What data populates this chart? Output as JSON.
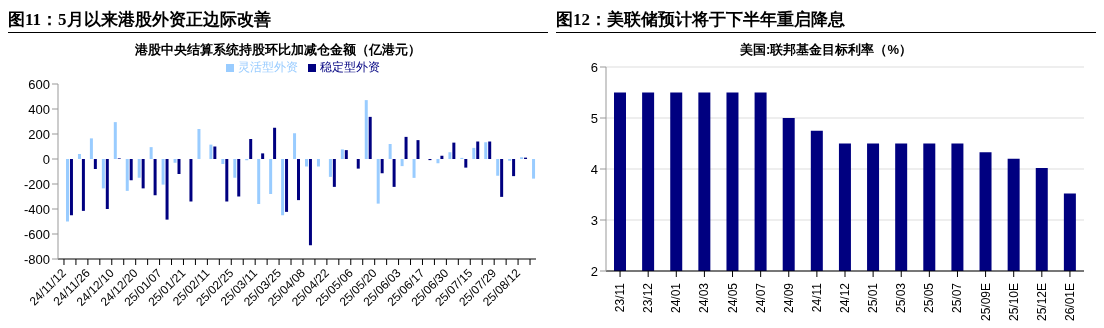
{
  "chart_data": [
    {
      "type": "bar",
      "title": "图11：5月以来港股外资正边际改善",
      "subtitle": "港股中央结算系统持股环比加减仓金额（亿港元）",
      "categories": [
        "24/11/12",
        null,
        "24/11/26",
        null,
        "24/12/10",
        null,
        "24/12/20",
        null,
        "25/01/07",
        null,
        "25/01/21",
        null,
        "25/02/11",
        null,
        "25/02/25",
        null,
        "25/03/11",
        null,
        "25/03/25",
        null,
        "25/04/08",
        null,
        "25/04/22",
        null,
        "25/05/06",
        null,
        "25/05/20",
        null,
        "25/06/03",
        null,
        "25/06/17",
        null,
        "25/06/30",
        null,
        "25/07/15",
        null,
        "25/07/29",
        null,
        "25/08/12",
        null
      ],
      "series": [
        {
          "name": "稳定型外资",
          "color": "#000080",
          "values": [
            0,
            -450,
            -415,
            -80,
            -400,
            5,
            -170,
            -235,
            -290,
            -485,
            -120,
            -340,
            0,
            100,
            -340,
            -300,
            160,
            45,
            250,
            -423,
            -329,
            -690,
            0,
            -223,
            71,
            -77,
            337,
            -114,
            -223,
            177,
            151,
            -9,
            26,
            131,
            -69,
            140,
            140,
            -303,
            -137,
            11
          ]
        },
        {
          "name": "灵活型外资",
          "color": "#99ccff",
          "values": [
            -500,
            40,
            165,
            -235,
            295,
            -255,
            -150,
            95,
            -205,
            -30,
            0,
            240,
            115,
            -40,
            -150,
            -10,
            -360,
            -280,
            -450,
            206,
            -60,
            -60,
            -143,
            77,
            0,
            471,
            -357,
            120,
            -57,
            -151,
            0,
            -34,
            54,
            9,
            89,
            134,
            -134,
            -14,
            14,
            -157
          ]
        }
      ],
      "ylim": [
        -800,
        600
      ],
      "yticks": [
        -800,
        -600,
        -400,
        -200,
        0,
        200,
        400,
        600
      ],
      "grid": false,
      "legend": "top"
    },
    {
      "type": "bar",
      "title": "图12：美联储预计将于下半年重启降息",
      "subtitle": "美国:联邦基金目标利率（%）",
      "categories": [
        "23/11",
        "23/12",
        "24/01",
        "24/03",
        "24/05",
        "24/07",
        "24/09",
        "24/11",
        "24/12",
        "25/01",
        "25/03",
        "25/05",
        "25/07",
        "25/09E",
        "25/10E",
        "25/12E",
        "26/01E"
      ],
      "series": [
        {
          "color": "#000080",
          "values": [
            5.5,
            5.5,
            5.5,
            5.5,
            5.5,
            5.5,
            5.0,
            4.75,
            4.5,
            4.5,
            4.5,
            4.5,
            4.5,
            4.33,
            4.2,
            4.02,
            3.52
          ]
        }
      ],
      "ylim": [
        2,
        6
      ],
      "yticks": [
        2,
        3,
        4,
        5,
        6
      ],
      "grid": "y",
      "legend": false
    }
  ]
}
